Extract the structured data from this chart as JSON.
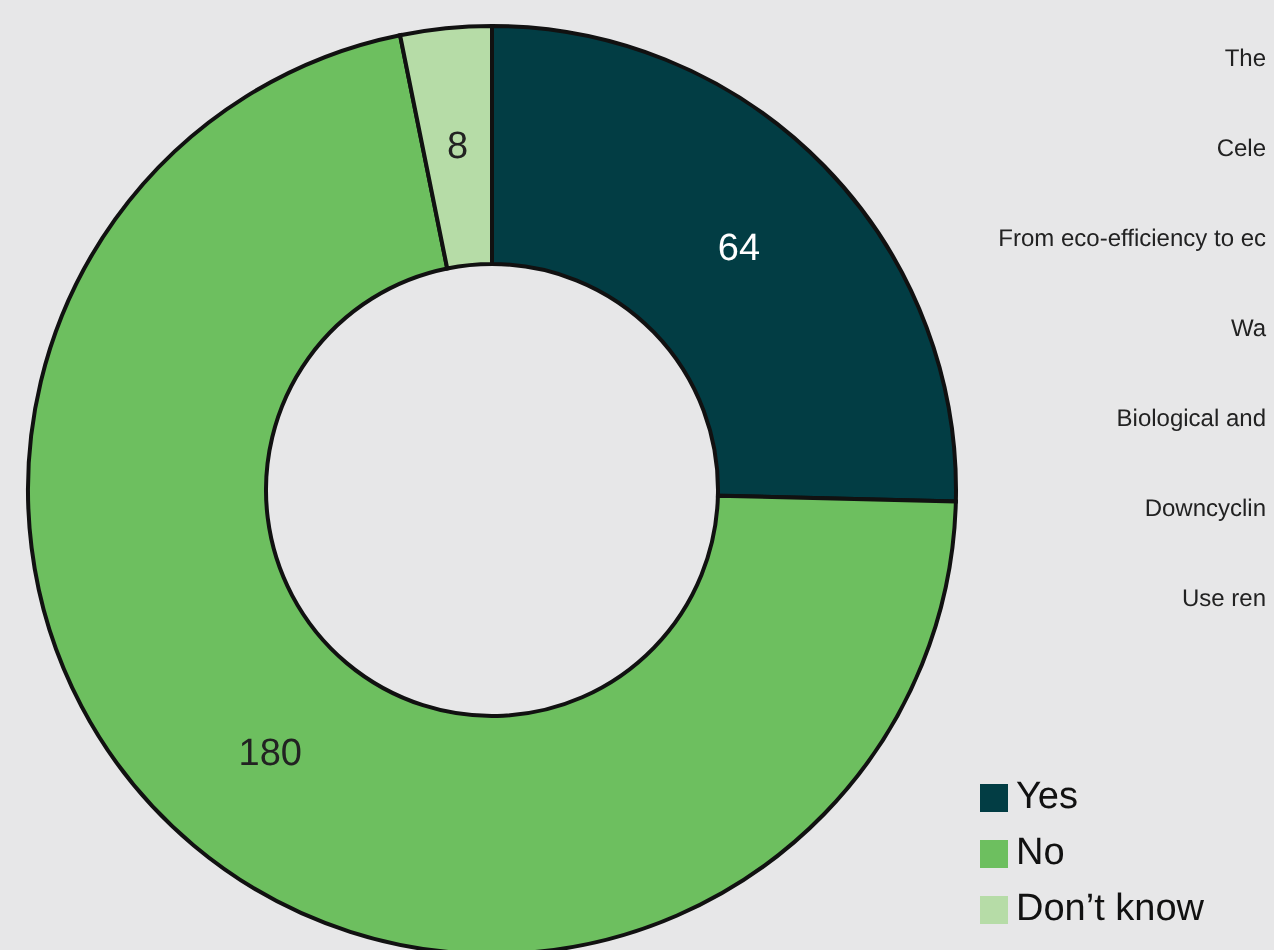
{
  "chart_data": {
    "type": "donut",
    "categories": [
      "Yes",
      "No",
      "Don’t know"
    ],
    "values": [
      64,
      180,
      8
    ],
    "colors": [
      "#023d44",
      "#6dbf5f",
      "#b6dca7"
    ],
    "data_labels": true,
    "legend": "bottom right",
    "annotations": [
      "The",
      "Cele",
      "From eco-efficiency to ec",
      "Wa",
      "Biological and",
      "Downcyclin",
      "Use ren"
    ]
  }
}
